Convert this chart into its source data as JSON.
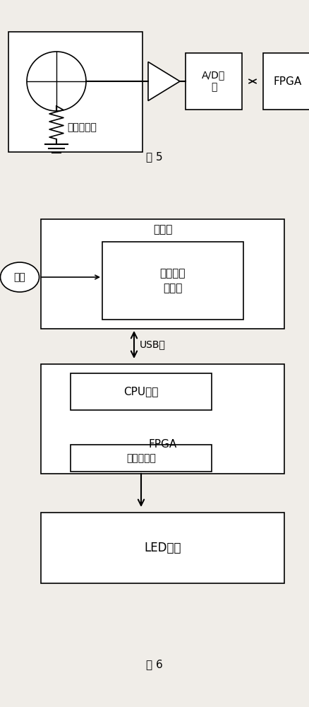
{
  "bg_color": "#f0ede8",
  "fig5": {
    "caption": "图 5",
    "sensor_box_label": "感光传感器",
    "ad_label": "A/D采\n样",
    "fpga_label": "FPGA"
  },
  "fig6": {
    "caption": "图 6",
    "user_label": "用户",
    "host_outer_label": "上位机",
    "software_label": "背景灯设\n置软件",
    "usb_label": "USB口",
    "cpu_label": "CPU软核",
    "fpga_label": "FPGA",
    "ctrl_reg_label": "控制寄存器",
    "led_label": "LED阵列"
  }
}
